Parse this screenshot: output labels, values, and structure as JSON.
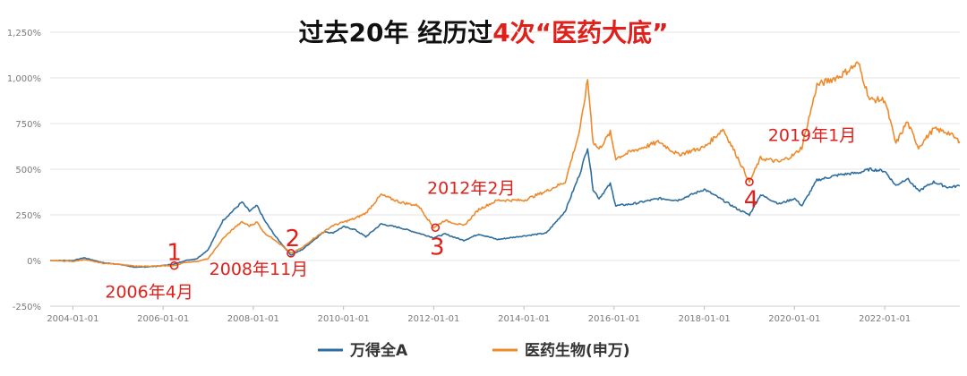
{
  "chart_data": {
    "type": "line",
    "title": {
      "prefix": "过去20年 经历过",
      "highlight": "4次“医药大底”",
      "prefix_color": "#111111",
      "highlight_color": "#e0201b"
    },
    "ylim": [
      -250,
      1250
    ],
    "yticks": [
      -250,
      0,
      250,
      500,
      750,
      1000,
      1250
    ],
    "ytick_labels": [
      "-250%",
      "0%",
      "250%",
      "500%",
      "750%",
      "1,000%",
      "1,250%"
    ],
    "x_range": [
      "2003-07-01",
      "2023-09-01"
    ],
    "xticks": [
      "2004-01-01",
      "2006-01-01",
      "2008-01-01",
      "2010-01-01",
      "2012-01-01",
      "2014-01-01",
      "2016-01-01",
      "2018-01-01",
      "2020-01-01",
      "2022-01-01"
    ],
    "grid": true,
    "legend_position": "bottom",
    "series": [
      {
        "name": "万得全A",
        "color": "#2e6e9e",
        "points": [
          [
            "2003-07-01",
            0
          ],
          [
            "2004-01-01",
            0
          ],
          [
            "2004-04-01",
            15
          ],
          [
            "2004-09-01",
            -12
          ],
          [
            "2005-01-01",
            -20
          ],
          [
            "2005-06-01",
            -38
          ],
          [
            "2005-12-01",
            -30
          ],
          [
            "2006-04-01",
            -20
          ],
          [
            "2006-07-01",
            0
          ],
          [
            "2006-10-01",
            10
          ],
          [
            "2007-01-01",
            60
          ],
          [
            "2007-05-01",
            220
          ],
          [
            "2007-08-01",
            280
          ],
          [
            "2007-10-01",
            320
          ],
          [
            "2007-12-01",
            270
          ],
          [
            "2008-02-01",
            300
          ],
          [
            "2008-04-01",
            220
          ],
          [
            "2008-07-01",
            130
          ],
          [
            "2008-11-01",
            30
          ],
          [
            "2009-02-01",
            60
          ],
          [
            "2009-05-01",
            110
          ],
          [
            "2009-08-01",
            160
          ],
          [
            "2009-10-01",
            150
          ],
          [
            "2010-01-01",
            185
          ],
          [
            "2010-04-01",
            170
          ],
          [
            "2010-07-01",
            130
          ],
          [
            "2010-11-01",
            200
          ],
          [
            "2011-04-01",
            180
          ],
          [
            "2011-09-01",
            150
          ],
          [
            "2012-01-01",
            125
          ],
          [
            "2012-04-01",
            145
          ],
          [
            "2012-09-01",
            110
          ],
          [
            "2013-01-01",
            145
          ],
          [
            "2013-06-01",
            115
          ],
          [
            "2014-01-01",
            135
          ],
          [
            "2014-07-01",
            150
          ],
          [
            "2014-12-01",
            270
          ],
          [
            "2015-04-01",
            480
          ],
          [
            "2015-06-01",
            620
          ],
          [
            "2015-07-15",
            390
          ],
          [
            "2015-09-01",
            340
          ],
          [
            "2015-12-01",
            420
          ],
          [
            "2016-01-15",
            300
          ],
          [
            "2016-06-01",
            310
          ],
          [
            "2017-01-01",
            340
          ],
          [
            "2017-06-01",
            330
          ],
          [
            "2018-01-01",
            390
          ],
          [
            "2018-06-01",
            330
          ],
          [
            "2018-10-01",
            280
          ],
          [
            "2019-01-01",
            250
          ],
          [
            "2019-04-01",
            360
          ],
          [
            "2019-09-01",
            310
          ],
          [
            "2020-01-01",
            340
          ],
          [
            "2020-03-01",
            300
          ],
          [
            "2020-07-01",
            440
          ],
          [
            "2021-01-01",
            470
          ],
          [
            "2021-06-01",
            480
          ],
          [
            "2021-09-01",
            500
          ],
          [
            "2022-01-01",
            490
          ],
          [
            "2022-04-01",
            410
          ],
          [
            "2022-07-01",
            450
          ],
          [
            "2022-10-01",
            380
          ],
          [
            "2023-02-01",
            430
          ],
          [
            "2023-06-01",
            400
          ],
          [
            "2023-09-01",
            410
          ]
        ]
      },
      {
        "name": "医药生物(申万)",
        "color": "#ee8a2b",
        "points": [
          [
            "2003-07-01",
            0
          ],
          [
            "2004-01-01",
            -5
          ],
          [
            "2004-04-01",
            5
          ],
          [
            "2004-09-01",
            -15
          ],
          [
            "2005-01-01",
            -20
          ],
          [
            "2005-06-01",
            -32
          ],
          [
            "2005-12-01",
            -30
          ],
          [
            "2006-04-01",
            -28
          ],
          [
            "2006-07-01",
            -10
          ],
          [
            "2006-10-01",
            -5
          ],
          [
            "2007-01-01",
            10
          ],
          [
            "2007-05-01",
            120
          ],
          [
            "2007-08-01",
            180
          ],
          [
            "2007-10-01",
            210
          ],
          [
            "2007-12-01",
            190
          ],
          [
            "2008-02-01",
            210
          ],
          [
            "2008-04-01",
            150
          ],
          [
            "2008-07-01",
            110
          ],
          [
            "2008-11-01",
            40
          ],
          [
            "2009-02-01",
            70
          ],
          [
            "2009-05-01",
            120
          ],
          [
            "2009-08-01",
            160
          ],
          [
            "2009-10-01",
            190
          ],
          [
            "2010-01-01",
            210
          ],
          [
            "2010-04-01",
            230
          ],
          [
            "2010-07-01",
            260
          ],
          [
            "2010-11-01",
            360
          ],
          [
            "2011-04-01",
            320
          ],
          [
            "2011-09-01",
            300
          ],
          [
            "2012-01-01",
            180
          ],
          [
            "2012-04-01",
            220
          ],
          [
            "2012-09-01",
            190
          ],
          [
            "2013-01-01",
            280
          ],
          [
            "2013-06-01",
            330
          ],
          [
            "2014-01-01",
            330
          ],
          [
            "2014-07-01",
            380
          ],
          [
            "2014-12-01",
            430
          ],
          [
            "2015-04-01",
            720
          ],
          [
            "2015-06-01",
            990
          ],
          [
            "2015-07-15",
            650
          ],
          [
            "2015-09-01",
            610
          ],
          [
            "2015-12-01",
            700
          ],
          [
            "2016-01-15",
            560
          ],
          [
            "2016-06-01",
            600
          ],
          [
            "2017-01-01",
            650
          ],
          [
            "2017-06-01",
            580
          ],
          [
            "2018-01-01",
            620
          ],
          [
            "2018-06-01",
            720
          ],
          [
            "2018-10-01",
            560
          ],
          [
            "2019-01-01",
            430
          ],
          [
            "2019-04-01",
            560
          ],
          [
            "2019-09-01",
            540
          ],
          [
            "2020-01-01",
            580
          ],
          [
            "2020-03-01",
            620
          ],
          [
            "2020-07-01",
            960
          ],
          [
            "2021-01-01",
            1010
          ],
          [
            "2021-06-01",
            1080
          ],
          [
            "2021-09-01",
            880
          ],
          [
            "2022-01-01",
            880
          ],
          [
            "2022-04-01",
            640
          ],
          [
            "2022-07-01",
            760
          ],
          [
            "2022-10-01",
            620
          ],
          [
            "2023-02-01",
            720
          ],
          [
            "2023-06-01",
            700
          ],
          [
            "2023-09-01",
            650
          ]
        ]
      }
    ],
    "annotations": [
      {
        "number": "1",
        "date_label": "2006年4月",
        "date": "2006-04-01",
        "value": -28
      },
      {
        "number": "2",
        "date_label": "2008年11月",
        "date": "2008-11-01",
        "value": 40
      },
      {
        "number": "3",
        "date_label": "2012年2月",
        "date": "2012-01-15",
        "value": 180
      },
      {
        "number": "4",
        "date_label": "2019年1月",
        "date": "2019-01-01",
        "value": 430
      }
    ]
  }
}
